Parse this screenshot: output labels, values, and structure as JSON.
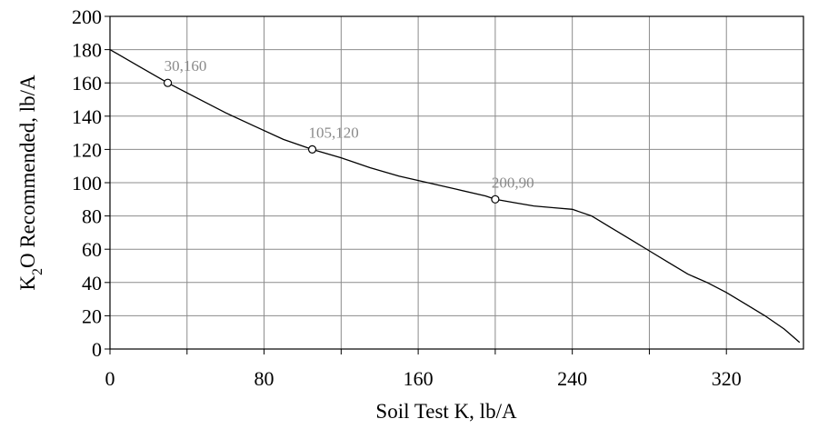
{
  "chart_data": {
    "type": "line",
    "xlabel": "Soil Test K, lb/A",
    "ylabel_main": "K",
    "ylabel_sub": "2",
    "ylabel_rest": "O Recommended, lb/A",
    "xlim": [
      0,
      360
    ],
    "ylim": [
      0,
      200
    ],
    "x_ticks": [
      0,
      80,
      160,
      240,
      320
    ],
    "x_minor_ticks": [
      40,
      120,
      200,
      280
    ],
    "y_ticks": [
      0,
      20,
      40,
      60,
      80,
      100,
      120,
      140,
      160,
      180,
      200
    ],
    "grid": true,
    "series": [
      {
        "x": [
          0,
          15,
          30,
          45,
          60,
          75,
          90,
          105,
          120,
          135,
          150,
          165,
          180,
          195,
          200,
          210,
          220,
          230,
          240,
          250,
          260,
          270,
          280,
          290,
          300,
          310,
          320,
          330,
          340,
          350,
          358
        ],
        "y": [
          180,
          170,
          160,
          151,
          142,
          134,
          126,
          120,
          115,
          109,
          104,
          100,
          96,
          92,
          90,
          88,
          86,
          85,
          84,
          80,
          73,
          66,
          59,
          52,
          45,
          40,
          34,
          27,
          20,
          12,
          4
        ]
      }
    ],
    "markers": [
      {
        "x": 30,
        "y": 160,
        "label": "30,160"
      },
      {
        "x": 105,
        "y": 120,
        "label": "105,120"
      },
      {
        "x": 200,
        "y": 90,
        "label": "200,90"
      }
    ]
  }
}
